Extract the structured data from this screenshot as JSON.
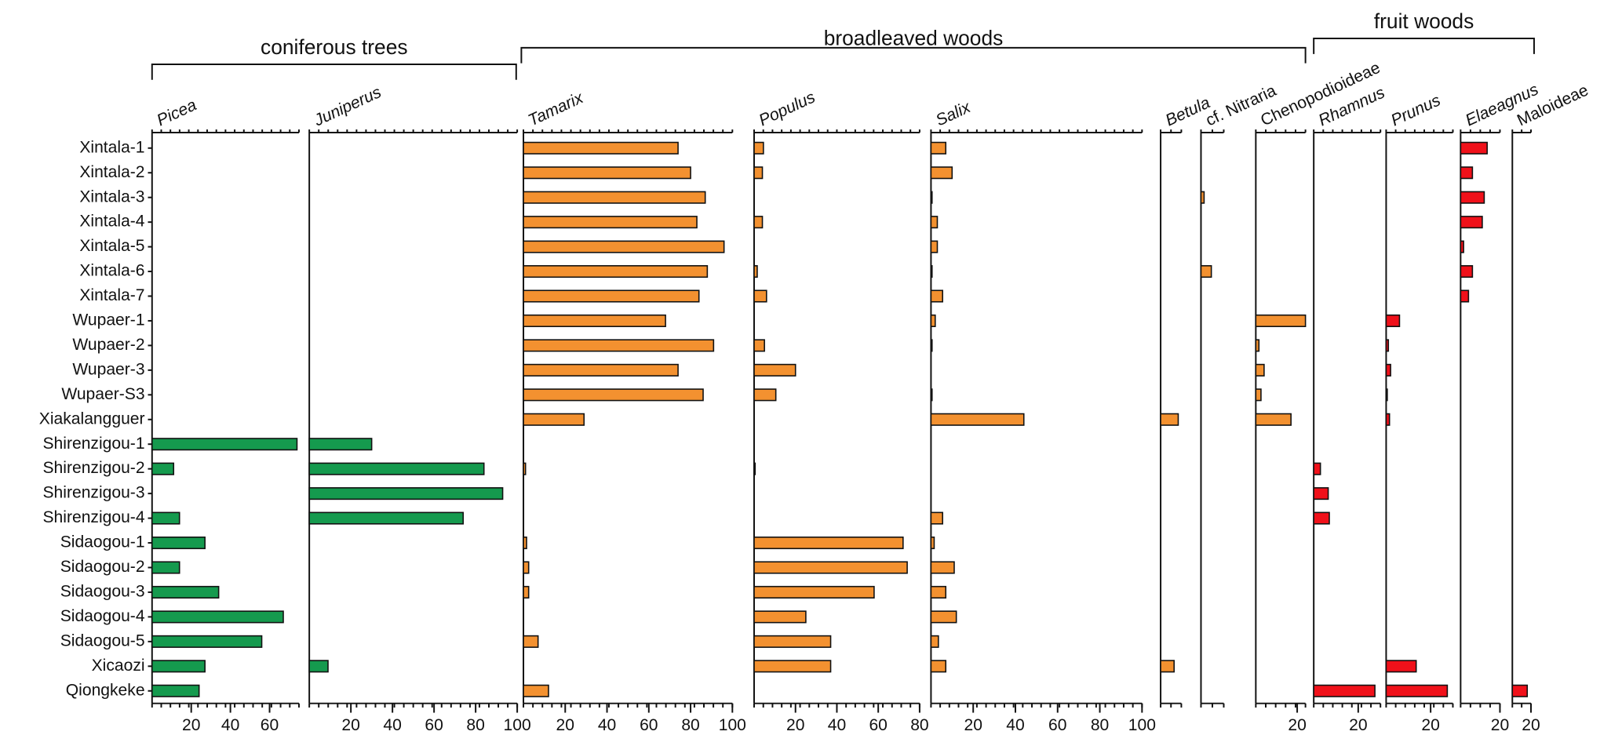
{
  "chart_data": {
    "type": "bar",
    "orientation": "horizontal",
    "categories": [
      "Xintala-1",
      "Xintala-2",
      "Xintala-3",
      "Xintala-4",
      "Xintala-5",
      "Xintala-6",
      "Xintala-7",
      "Wupaer-1",
      "Wupaer-2",
      "Wupaer-3",
      "Wupaer-S3",
      "Xiakalangguer",
      "Shirenzigou-1",
      "Shirenzigou-2",
      "Shirenzigou-3",
      "Shirenzigou-4",
      "Sidaogou-1",
      "Sidaogou-2",
      "Sidaogou-3",
      "Sidaogou-4",
      "Sidaogou-5",
      "Xicaozi",
      "Qiongkeke"
    ],
    "groups": [
      {
        "name": "coniferous trees",
        "series": [
          0,
          1
        ]
      },
      {
        "name": "broadleaved woods",
        "series": [
          2,
          3,
          4,
          5,
          6,
          7
        ]
      },
      {
        "name": "fruit woods",
        "series": [
          8,
          9,
          10,
          11
        ]
      }
    ],
    "series": [
      {
        "name": "Picea",
        "italic": true,
        "color": "#159a4e",
        "xlim": [
          0,
          75
        ],
        "xticks": [
          20,
          40,
          60
        ],
        "values": [
          null,
          null,
          null,
          null,
          null,
          null,
          null,
          null,
          null,
          null,
          null,
          null,
          74,
          11,
          null,
          14,
          27,
          14,
          34,
          67,
          56,
          27,
          24
        ]
      },
      {
        "name": "Juniperus",
        "italic": true,
        "color": "#159a4e",
        "xlim": [
          0,
          100
        ],
        "xticks": [
          20,
          40,
          60,
          80,
          100
        ],
        "values": [
          null,
          null,
          null,
          null,
          null,
          null,
          null,
          null,
          null,
          null,
          null,
          null,
          30,
          84,
          93,
          74,
          null,
          null,
          null,
          null,
          null,
          9,
          null
        ]
      },
      {
        "name": "Tamarix",
        "italic": true,
        "color": "#f39130",
        "xlim": [
          0,
          100
        ],
        "xticks": [
          20,
          40,
          60,
          80,
          100
        ],
        "values": [
          74,
          80,
          87,
          83,
          96,
          88,
          84,
          68,
          91,
          74,
          86,
          29,
          null,
          1,
          null,
          null,
          1.5,
          2.5,
          2.5,
          null,
          7,
          null,
          12
        ]
      },
      {
        "name": "Populus",
        "italic": true,
        "color": "#f39130",
        "xlim": [
          0,
          80
        ],
        "xticks": [
          20,
          40,
          60,
          80
        ],
        "values": [
          4.5,
          4,
          null,
          4,
          null,
          1.5,
          6,
          null,
          5,
          20,
          10.5,
          null,
          null,
          0.5,
          null,
          null,
          72,
          74,
          58,
          25,
          37,
          37,
          null
        ]
      },
      {
        "name": "Salix",
        "italic": true,
        "color": "#f39130",
        "xlim": [
          0,
          100
        ],
        "xticks": [
          20,
          40,
          60,
          80,
          100
        ],
        "values": [
          7,
          10,
          0.5,
          3,
          3,
          0.5,
          5.5,
          2,
          0.5,
          null,
          0.5,
          44,
          null,
          null,
          null,
          5.5,
          1.5,
          11,
          7,
          12,
          3.5,
          7,
          null
        ]
      },
      {
        "name": "Betula",
        "italic": true,
        "color": "#f39130",
        "xlim": [
          0,
          20
        ],
        "values": [
          null,
          null,
          null,
          null,
          null,
          null,
          null,
          null,
          null,
          null,
          null,
          17,
          null,
          null,
          null,
          null,
          null,
          null,
          null,
          null,
          null,
          13,
          null
        ]
      },
      {
        "name": "cf. Nitraria",
        "italic": false,
        "color": "#f39130",
        "xlim": [
          0,
          22
        ],
        "values": [
          null,
          null,
          3,
          null,
          null,
          10,
          null,
          null,
          null,
          null,
          null,
          null,
          null,
          null,
          null,
          null,
          null,
          null,
          null,
          null,
          null,
          null,
          null
        ]
      },
      {
        "name": "Chenopodioideae",
        "italic": false,
        "color": "#f39130",
        "xlim": [
          0,
          24
        ],
        "xticks": [
          20
        ],
        "values": [
          null,
          null,
          null,
          null,
          null,
          null,
          null,
          24,
          1.5,
          4,
          2.5,
          17,
          null,
          null,
          null,
          null,
          null,
          null,
          null,
          null,
          null,
          null,
          null
        ]
      },
      {
        "name": "Rhamnus",
        "italic": true,
        "color": "#f0111a",
        "xlim": [
          0,
          30
        ],
        "xticks": [
          20
        ],
        "values": [
          null,
          null,
          null,
          null,
          null,
          null,
          null,
          null,
          null,
          null,
          null,
          null,
          null,
          3,
          6.5,
          7,
          null,
          null,
          null,
          null,
          null,
          null,
          27.5
        ]
      },
      {
        "name": "Prunus",
        "italic": true,
        "color": "#f0111a",
        "xlim": [
          0,
          30
        ],
        "xticks": [
          20
        ],
        "values": [
          null,
          null,
          null,
          null,
          null,
          null,
          null,
          6,
          1,
          2,
          0.5,
          1.5,
          null,
          null,
          null,
          null,
          null,
          null,
          null,
          null,
          null,
          13.5,
          27.5
        ]
      },
      {
        "name": "Elaeagnus",
        "italic": true,
        "color": "#f0111a",
        "xlim": [
          0,
          20
        ],
        "xticks": [
          20
        ],
        "values": [
          13.5,
          6,
          12,
          11,
          1.5,
          6,
          4,
          null,
          null,
          null,
          null,
          null,
          null,
          null,
          null,
          null,
          null,
          null,
          null,
          null,
          null,
          null,
          null
        ]
      },
      {
        "name": "Maloideae",
        "italic": false,
        "color": "#f0111a",
        "xlim": [
          0,
          20
        ],
        "xticks": [
          20
        ],
        "values": [
          null,
          null,
          null,
          null,
          null,
          null,
          null,
          null,
          null,
          null,
          null,
          null,
          null,
          null,
          null,
          null,
          null,
          null,
          null,
          null,
          null,
          null,
          16
        ]
      }
    ]
  }
}
